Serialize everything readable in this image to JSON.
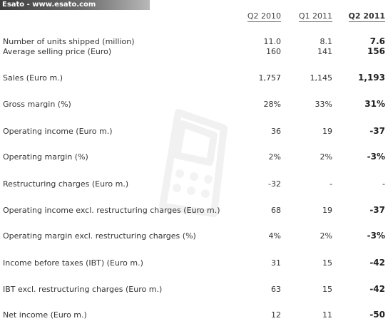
{
  "banner": {
    "text": "Esato - www.esato.com"
  },
  "columns": [
    "Q2 2010",
    "Q1 2011",
    "Q2 2011"
  ],
  "rows": [
    {
      "label": "Number of units shipped (million)",
      "values": [
        "11.0",
        "8.1",
        "7.6"
      ]
    },
    {
      "label": "Average selling price (Euro)",
      "values": [
        "160",
        "141",
        "156"
      ]
    },
    {
      "label": "Sales (Euro m.)",
      "values": [
        "1,757",
        "1,145",
        "1,193"
      ]
    },
    {
      "label": "Gross margin (%)",
      "values": [
        "28%",
        "33%",
        "31%"
      ]
    },
    {
      "label": "Operating income (Euro m.)",
      "values": [
        "36",
        "19",
        "-37"
      ]
    },
    {
      "label": "Operating margin (%)",
      "values": [
        "2%",
        "2%",
        "-3%"
      ]
    },
    {
      "label": "Restructuring charges (Euro m.)",
      "values": [
        "-32",
        "-",
        "-"
      ]
    },
    {
      "label": "Operating income excl. restructuring charges (Euro m.)",
      "values": [
        "68",
        "19",
        "-37"
      ]
    },
    {
      "label": "Operating margin excl. restructuring charges (%)",
      "values": [
        "4%",
        "2%",
        "-3%"
      ]
    },
    {
      "label": "Income before taxes (IBT) (Euro m.)",
      "values": [
        "31",
        "15",
        "-42"
      ]
    },
    {
      "label": "IBT excl. restructuring charges (Euro m.)",
      "values": [
        "63",
        "15",
        "-42"
      ]
    },
    {
      "label": "Net income (Euro m.)",
      "values": [
        "12",
        "11",
        "-50"
      ]
    }
  ],
  "watermark_icon": "phone-logo-icon"
}
